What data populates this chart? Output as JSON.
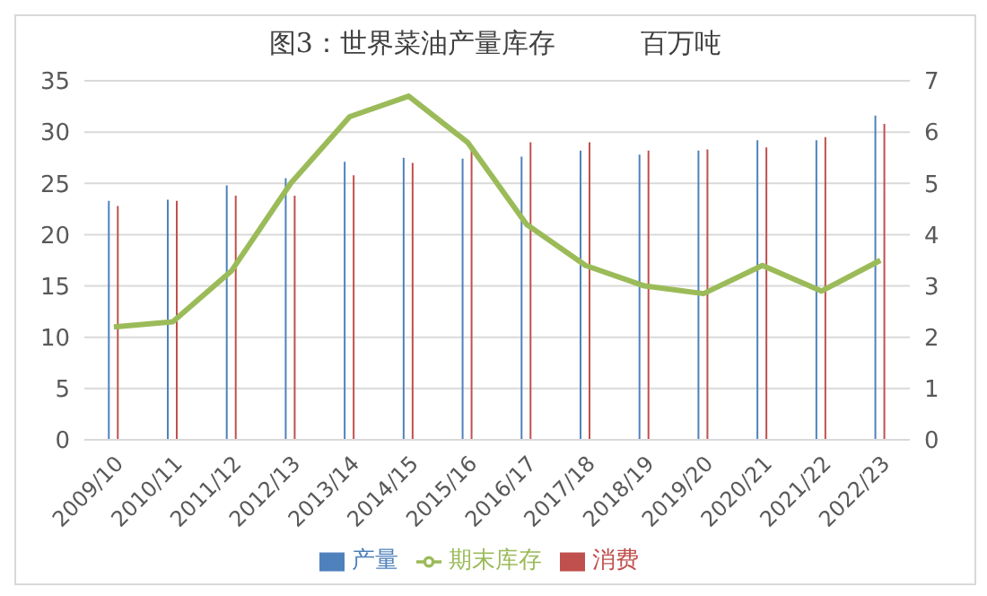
{
  "chart_data": {
    "type": "bar",
    "title": "图3：世界菜油产量库存          百万吨",
    "categories": [
      "2009/10",
      "2010/11",
      "2011/12",
      "2012/13",
      "2013/14",
      "2014/15",
      "2015/16",
      "2016/17",
      "2017/18",
      "2018/19",
      "2019/20",
      "2020/21",
      "2021/22",
      "2022/23"
    ],
    "series": [
      {
        "name": "产量",
        "color": "#4f81bd",
        "values": [
          23.3,
          23.4,
          24.8,
          25.5,
          27.1,
          27.5,
          27.4,
          27.6,
          28.2,
          27.8,
          28.2,
          29.2,
          29.2,
          31.6
        ]
      },
      {
        "name": "消费",
        "color": "#c0504d",
        "values": [
          22.8,
          23.3,
          23.8,
          23.8,
          25.8,
          27.0,
          28.3,
          29.0,
          29.0,
          28.2,
          28.3,
          28.5,
          29.5,
          30.8
        ]
      },
      {
        "name": "期末库存",
        "type": "line",
        "axis": "y2",
        "color": "#9bbb59",
        "values": [
          2.2,
          2.3,
          3.3,
          5.0,
          6.3,
          6.7,
          5.8,
          4.2,
          3.4,
          3.0,
          2.85,
          3.4,
          2.9,
          3.5
        ]
      }
    ],
    "ylim": [
      0,
      35
    ],
    "yticks": [
      0,
      5,
      10,
      15,
      20,
      25,
      30,
      35
    ],
    "y2lim": [
      0,
      7
    ],
    "y2ticks": [
      0,
      1,
      2,
      3,
      4,
      5,
      6,
      7
    ],
    "grid": "y",
    "legend": "bottom",
    "marker": "none"
  }
}
